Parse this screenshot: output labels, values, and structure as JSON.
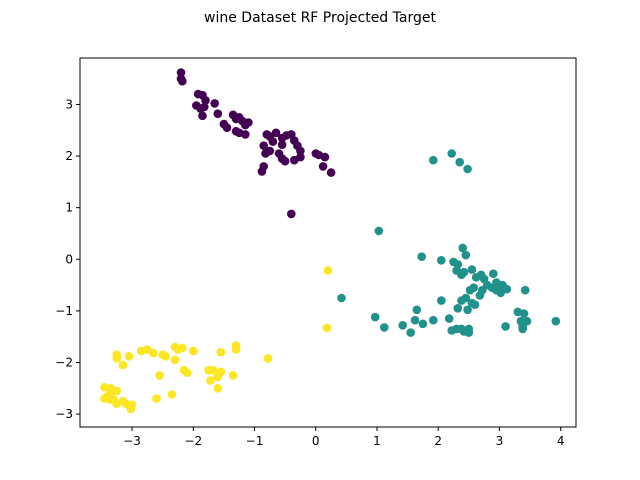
{
  "chart_data": {
    "type": "scatter",
    "title": "wine Dataset RF Projected Target",
    "xlabel": "",
    "ylabel": "",
    "xlim": [
      -3.85,
      4.25
    ],
    "ylim": [
      -3.25,
      3.9
    ],
    "xticks": [
      -3,
      -2,
      -1,
      0,
      1,
      2,
      3,
      4
    ],
    "yticks": [
      -3,
      -2,
      -1,
      0,
      1,
      2,
      3
    ],
    "grid": false,
    "series": [
      {
        "color": "#440154",
        "points": [
          [
            -2.2,
            3.62
          ],
          [
            -2.2,
            3.5
          ],
          [
            -2.18,
            3.45
          ],
          [
            -1.92,
            3.2
          ],
          [
            -1.85,
            3.18
          ],
          [
            -1.8,
            3.08
          ],
          [
            -1.95,
            2.98
          ],
          [
            -1.88,
            2.92
          ],
          [
            -1.82,
            2.95
          ],
          [
            -1.65,
            3.02
          ],
          [
            -1.85,
            2.78
          ],
          [
            -1.6,
            2.82
          ],
          [
            -1.5,
            2.62
          ],
          [
            -1.45,
            2.55
          ],
          [
            -1.35,
            2.8
          ],
          [
            -1.3,
            2.72
          ],
          [
            -1.25,
            2.75
          ],
          [
            -1.2,
            2.68
          ],
          [
            -1.15,
            2.6
          ],
          [
            -1.1,
            2.65
          ],
          [
            -1.3,
            2.48
          ],
          [
            -1.25,
            2.45
          ],
          [
            -1.15,
            2.42
          ],
          [
            -0.8,
            2.42
          ],
          [
            -0.75,
            2.38
          ],
          [
            -0.65,
            2.45
          ],
          [
            -0.55,
            2.35
          ],
          [
            -0.48,
            2.4
          ],
          [
            -0.4,
            2.42
          ],
          [
            -0.35,
            2.3
          ],
          [
            -0.55,
            2.22
          ],
          [
            -0.7,
            2.28
          ],
          [
            -0.85,
            2.2
          ],
          [
            -0.82,
            2.05
          ],
          [
            -0.75,
            2.1
          ],
          [
            -0.6,
            2.05
          ],
          [
            -0.55,
            1.95
          ],
          [
            -0.5,
            1.9
          ],
          [
            -0.3,
            2.2
          ],
          [
            -0.25,
            2.1
          ],
          [
            -0.25,
            1.98
          ],
          [
            -0.35,
            1.92
          ],
          [
            -0.85,
            1.8
          ],
          [
            -0.88,
            1.7
          ],
          [
            0.0,
            2.05
          ],
          [
            0.05,
            2.02
          ],
          [
            0.15,
            1.98
          ],
          [
            0.12,
            1.8
          ],
          [
            0.25,
            1.68
          ],
          [
            -0.4,
            0.88
          ]
        ]
      },
      {
        "color": "#21918c",
        "points": [
          [
            2.22,
            2.05
          ],
          [
            1.92,
            1.92
          ],
          [
            2.35,
            1.88
          ],
          [
            2.48,
            1.75
          ],
          [
            1.03,
            0.55
          ],
          [
            2.4,
            0.22
          ],
          [
            1.73,
            0.05
          ],
          [
            2.45,
            0.08
          ],
          [
            2.05,
            -0.02
          ],
          [
            2.25,
            -0.05
          ],
          [
            2.32,
            -0.1
          ],
          [
            2.3,
            -0.22
          ],
          [
            2.42,
            -0.25
          ],
          [
            2.38,
            -0.3
          ],
          [
            2.55,
            -0.2
          ],
          [
            2.62,
            -0.35
          ],
          [
            2.7,
            -0.3
          ],
          [
            2.75,
            -0.38
          ],
          [
            2.9,
            -0.28
          ],
          [
            2.95,
            -0.45
          ],
          [
            3.05,
            -0.5
          ],
          [
            2.58,
            -0.55
          ],
          [
            2.52,
            -0.6
          ],
          [
            2.72,
            -0.6
          ],
          [
            2.88,
            -0.55
          ],
          [
            2.95,
            -0.6
          ],
          [
            3.02,
            -0.65
          ],
          [
            3.12,
            -0.58
          ],
          [
            2.8,
            -0.5
          ],
          [
            2.68,
            -0.7
          ],
          [
            2.45,
            -0.75
          ],
          [
            2.38,
            -0.8
          ],
          [
            2.55,
            -0.85
          ],
          [
            2.32,
            -0.95
          ],
          [
            2.48,
            -0.98
          ],
          [
            2.6,
            -0.88
          ],
          [
            2.05,
            -0.8
          ],
          [
            3.42,
            -0.6
          ],
          [
            0.42,
            -0.75
          ],
          [
            1.65,
            -0.98
          ],
          [
            1.62,
            -1.18
          ],
          [
            1.75,
            -1.25
          ],
          [
            1.92,
            -1.18
          ],
          [
            2.18,
            -1.15
          ],
          [
            3.3,
            -1.02
          ],
          [
            3.4,
            -1.05
          ],
          [
            3.35,
            -1.2
          ],
          [
            3.45,
            -1.2
          ],
          [
            3.92,
            -1.2
          ],
          [
            0.97,
            -1.12
          ],
          [
            1.12,
            -1.32
          ],
          [
            1.42,
            -1.28
          ],
          [
            1.55,
            -1.42
          ],
          [
            2.22,
            -1.38
          ],
          [
            2.3,
            -1.35
          ],
          [
            2.38,
            -1.35
          ],
          [
            2.42,
            -1.4
          ],
          [
            2.5,
            -1.35
          ],
          [
            2.5,
            -1.42
          ],
          [
            3.1,
            -1.3
          ],
          [
            3.38,
            -1.3
          ],
          [
            3.38,
            -1.35
          ]
        ]
      },
      {
        "color": "#fde725",
        "points": [
          [
            0.2,
            -0.22
          ],
          [
            0.18,
            -1.33
          ],
          [
            -1.3,
            -1.67
          ],
          [
            -1.3,
            -1.75
          ],
          [
            -1.55,
            -1.8
          ],
          [
            -2.3,
            -1.7
          ],
          [
            -2.18,
            -1.72
          ],
          [
            -2.25,
            -1.75
          ],
          [
            -2.0,
            -1.78
          ],
          [
            -2.75,
            -1.75
          ],
          [
            -2.85,
            -1.78
          ],
          [
            -2.65,
            -1.82
          ],
          [
            -2.5,
            -1.85
          ],
          [
            -2.45,
            -1.88
          ],
          [
            -3.25,
            -1.85
          ],
          [
            -3.25,
            -1.92
          ],
          [
            -3.05,
            -1.88
          ],
          [
            -2.3,
            -1.95
          ],
          [
            -3.15,
            -2.05
          ],
          [
            -0.78,
            -1.92
          ],
          [
            -2.15,
            -2.15
          ],
          [
            -2.1,
            -2.2
          ],
          [
            -1.75,
            -2.15
          ],
          [
            -1.68,
            -2.15
          ],
          [
            -1.55,
            -2.18
          ],
          [
            -1.6,
            -2.28
          ],
          [
            -1.72,
            -2.35
          ],
          [
            -1.35,
            -2.25
          ],
          [
            -1.6,
            -2.5
          ],
          [
            -2.55,
            -2.25
          ],
          [
            -3.45,
            -2.48
          ],
          [
            -3.35,
            -2.5
          ],
          [
            -3.25,
            -2.55
          ],
          [
            -3.35,
            -2.6
          ],
          [
            -3.4,
            -2.65
          ],
          [
            -3.45,
            -2.7
          ],
          [
            -3.3,
            -2.72
          ],
          [
            -3.15,
            -2.75
          ],
          [
            -3.25,
            -2.8
          ],
          [
            -3.1,
            -2.8
          ],
          [
            -3.0,
            -2.82
          ],
          [
            -3.02,
            -2.9
          ],
          [
            -2.6,
            -2.7
          ],
          [
            -2.35,
            -2.62
          ],
          [
            -3.35,
            -2.72
          ]
        ]
      }
    ]
  }
}
